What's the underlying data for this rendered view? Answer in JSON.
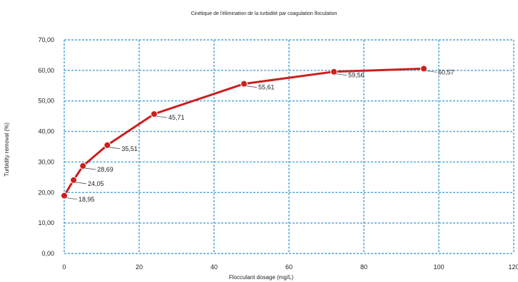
{
  "chart_data": {
    "type": "line",
    "title": "Cinétique de l'élimination de la turbidité par coagulation floculation",
    "xlabel": "Flocculant dosage (mg/L)",
    "ylabel": "Turbidity removal (%)",
    "xlim": [
      0,
      120
    ],
    "ylim": [
      0,
      70
    ],
    "x_ticks": [
      "0",
      "20",
      "40",
      "60",
      "80",
      "100",
      "120"
    ],
    "y_ticks": [
      "0,00",
      "10,00",
      "20,00",
      "30,00",
      "40,00",
      "50,00",
      "60,00",
      "70,00"
    ],
    "grid": true,
    "series": [
      {
        "x": [
          0,
          2.5,
          5,
          11.5,
          24,
          48,
          72,
          96
        ],
        "y": [
          18.95,
          24.05,
          28.69,
          35.51,
          45.71,
          55.61,
          59.56,
          60.57
        ],
        "labels": [
          "18,95",
          "24,05",
          "28,69",
          "35,51",
          "45,71",
          "55,61",
          "59,56",
          "60,57"
        ]
      }
    ],
    "colors": {
      "line": "#cc1f1f",
      "grid": "#4aa3d8"
    }
  }
}
